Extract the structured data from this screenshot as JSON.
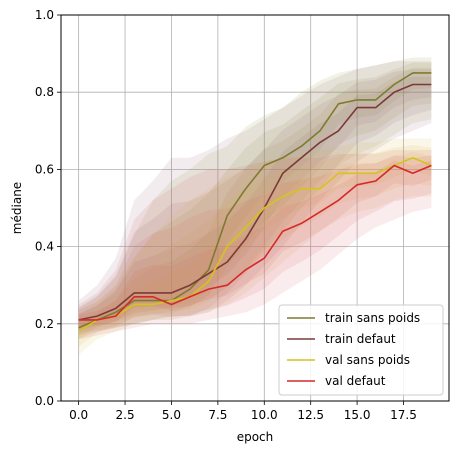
{
  "chart_data": {
    "type": "line",
    "xlabel": "epoch",
    "ylabel": "médiane",
    "xlim": [
      -0.95,
      19.95
    ],
    "ylim": [
      0.0,
      1.0
    ],
    "xticks": [
      0.0,
      2.5,
      5.0,
      7.5,
      10.0,
      12.5,
      15.0,
      17.5
    ],
    "xtick_labels": [
      "0.0",
      "2.5",
      "5.0",
      "7.5",
      "10.0",
      "12.5",
      "15.0",
      "17.5"
    ],
    "yticks": [
      0.0,
      0.2,
      0.4,
      0.6,
      0.8,
      1.0
    ],
    "ytick_labels": [
      "0.0",
      "0.2",
      "0.4",
      "0.6",
      "0.8",
      "1.0"
    ],
    "grid": true,
    "legend_position": "lower-right",
    "x": [
      0,
      1,
      2,
      3,
      4,
      5,
      6,
      7,
      8,
      9,
      10,
      11,
      12,
      13,
      14,
      15,
      16,
      17,
      18,
      19
    ],
    "series": [
      {
        "name": "train sans poids",
        "color": "#7d7b30",
        "band_color": "#8f9a3c",
        "values": [
          0.19,
          0.21,
          0.23,
          0.26,
          0.26,
          0.26,
          0.29,
          0.34,
          0.48,
          0.55,
          0.61,
          0.63,
          0.66,
          0.7,
          0.77,
          0.78,
          0.78,
          0.82,
          0.85,
          0.85
        ],
        "band_lower": [
          0.16,
          0.18,
          0.19,
          0.2,
          0.21,
          0.21,
          0.22,
          0.24,
          0.28,
          0.33,
          0.39,
          0.44,
          0.5,
          0.55,
          0.61,
          0.64,
          0.66,
          0.69,
          0.72,
          0.73
        ],
        "band_upper": [
          0.24,
          0.27,
          0.32,
          0.43,
          0.52,
          0.57,
          0.6,
          0.64,
          0.66,
          0.71,
          0.74,
          0.76,
          0.8,
          0.83,
          0.85,
          0.86,
          0.87,
          0.88,
          0.89,
          0.89
        ]
      },
      {
        "name": "train defaut",
        "color": "#7b3a3a",
        "band_color": "#9b6b78",
        "values": [
          0.21,
          0.22,
          0.24,
          0.28,
          0.28,
          0.28,
          0.3,
          0.33,
          0.36,
          0.42,
          0.5,
          0.59,
          0.63,
          0.67,
          0.7,
          0.76,
          0.76,
          0.8,
          0.82,
          0.82
        ],
        "band_lower": [
          0.17,
          0.18,
          0.19,
          0.2,
          0.21,
          0.22,
          0.22,
          0.23,
          0.26,
          0.3,
          0.35,
          0.4,
          0.46,
          0.52,
          0.57,
          0.62,
          0.65,
          0.68,
          0.7,
          0.72
        ],
        "band_upper": [
          0.26,
          0.3,
          0.37,
          0.52,
          0.57,
          0.63,
          0.63,
          0.65,
          0.68,
          0.7,
          0.73,
          0.76,
          0.79,
          0.82,
          0.84,
          0.86,
          0.87,
          0.88,
          0.88,
          0.88
        ]
      },
      {
        "name": "val sans poids",
        "color": "#d4c41e",
        "band_color": "#d9b64a",
        "values": [
          0.18,
          0.21,
          0.22,
          0.25,
          0.25,
          0.26,
          0.27,
          0.31,
          0.4,
          0.45,
          0.5,
          0.53,
          0.55,
          0.55,
          0.59,
          0.59,
          0.59,
          0.61,
          0.63,
          0.61
        ],
        "band_lower": [
          0.12,
          0.16,
          0.18,
          0.2,
          0.21,
          0.22,
          0.22,
          0.23,
          0.25,
          0.28,
          0.32,
          0.36,
          0.4,
          0.44,
          0.47,
          0.49,
          0.5,
          0.52,
          0.53,
          0.53
        ],
        "band_upper": [
          0.23,
          0.26,
          0.3,
          0.37,
          0.43,
          0.48,
          0.52,
          0.55,
          0.58,
          0.6,
          0.62,
          0.63,
          0.64,
          0.65,
          0.66,
          0.67,
          0.67,
          0.68,
          0.68,
          0.68
        ]
      },
      {
        "name": "val defaut",
        "color": "#d42a2a",
        "band_color": "#d9666e",
        "values": [
          0.21,
          0.21,
          0.22,
          0.27,
          0.27,
          0.25,
          0.27,
          0.29,
          0.3,
          0.34,
          0.37,
          0.44,
          0.46,
          0.49,
          0.52,
          0.56,
          0.57,
          0.61,
          0.59,
          0.61
        ],
        "band_lower": [
          0.16,
          0.17,
          0.18,
          0.19,
          0.2,
          0.2,
          0.2,
          0.21,
          0.22,
          0.23,
          0.25,
          0.28,
          0.31,
          0.34,
          0.38,
          0.42,
          0.45,
          0.47,
          0.49,
          0.5
        ],
        "band_upper": [
          0.25,
          0.28,
          0.34,
          0.47,
          0.52,
          0.55,
          0.58,
          0.6,
          0.6,
          0.61,
          0.62,
          0.63,
          0.63,
          0.63,
          0.64,
          0.64,
          0.64,
          0.65,
          0.65,
          0.65
        ]
      }
    ]
  }
}
